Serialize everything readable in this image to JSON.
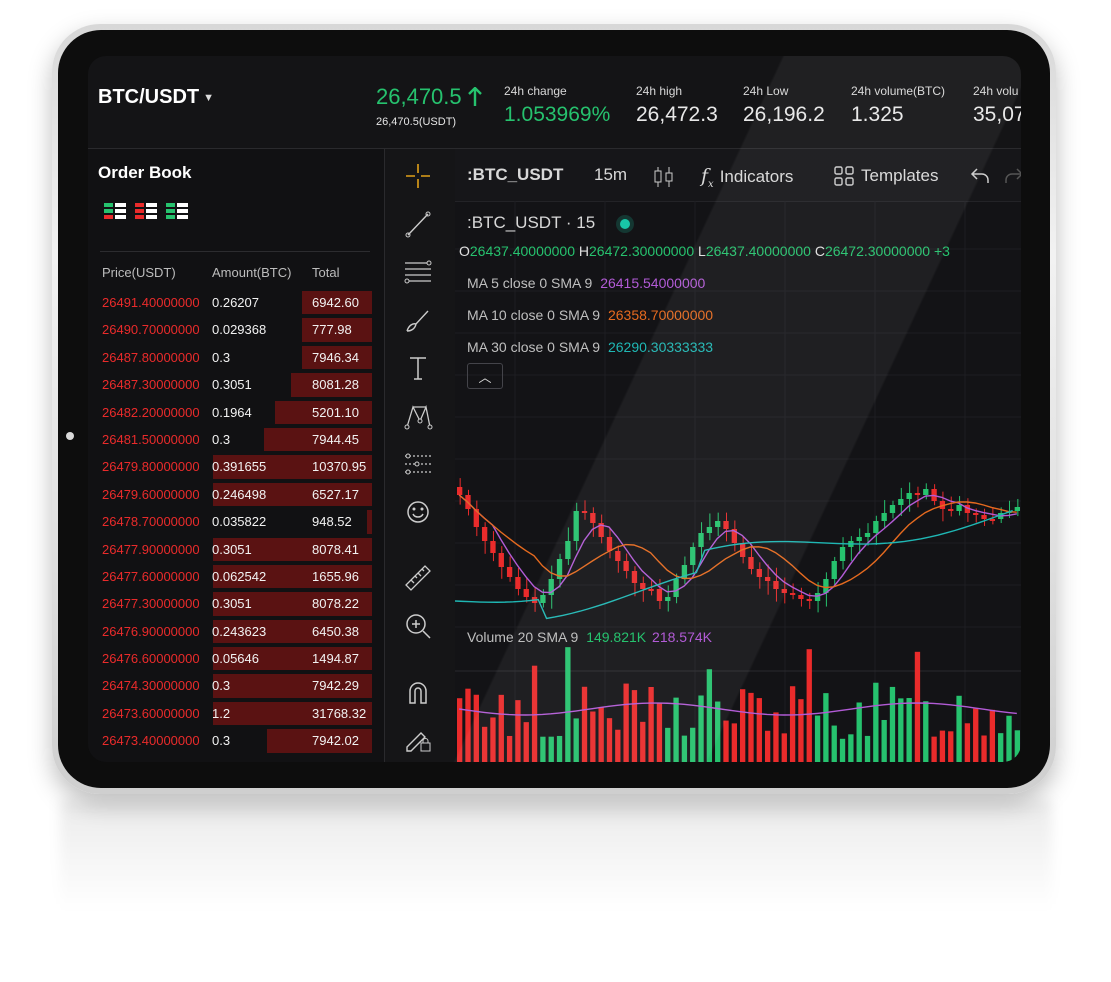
{
  "header": {
    "pair": "BTC/USDT",
    "price": "26,470.5",
    "price_sub": "26,470.5(USDT)",
    "stats": [
      {
        "label": "24h change",
        "value": "1.053969%",
        "color": "green"
      },
      {
        "label": "24h high",
        "value": "26,472.3",
        "color": "white"
      },
      {
        "label": "24h Low",
        "value": "26,196.2",
        "color": "white"
      },
      {
        "label": "24h volume(BTC)",
        "value": "1.325",
        "color": "white"
      },
      {
        "label": "24h volu",
        "value": "35,07",
        "color": "white"
      }
    ]
  },
  "order_book": {
    "title": "Order Book",
    "columns": {
      "price": "Price(USDT)",
      "amount": "Amount(BTC)",
      "total": "Total"
    },
    "rows": [
      {
        "price": "26491.40000000",
        "amount": "0.26207",
        "total": "6942.60",
        "depth": 0.26
      },
      {
        "price": "26490.70000000",
        "amount": "0.029368",
        "total": "777.98",
        "depth": 0.26
      },
      {
        "price": "26487.80000000",
        "amount": "0.3",
        "total": "7946.34",
        "depth": 0.26
      },
      {
        "price": "26487.30000000",
        "amount": "0.3051",
        "total": "8081.28",
        "depth": 0.3
      },
      {
        "price": "26482.20000000",
        "amount": "0.1964",
        "total": "5201.10",
        "depth": 0.36
      },
      {
        "price": "26481.50000000",
        "amount": "0.3",
        "total": "7944.45",
        "depth": 0.4
      },
      {
        "price": "26479.80000000",
        "amount": "0.391655",
        "total": "10370.95",
        "depth": 0.59
      },
      {
        "price": "26479.60000000",
        "amount": "0.246498",
        "total": "6527.17",
        "depth": 0.59
      },
      {
        "price": "26478.70000000",
        "amount": "0.035822",
        "total": "948.52",
        "depth": 0.02
      },
      {
        "price": "26477.90000000",
        "amount": "0.3051",
        "total": "8078.41",
        "depth": 0.59
      },
      {
        "price": "26477.60000000",
        "amount": "0.062542",
        "total": "1655.96",
        "depth": 0.59
      },
      {
        "price": "26477.30000000",
        "amount": "0.3051",
        "total": "8078.22",
        "depth": 0.59
      },
      {
        "price": "26476.90000000",
        "amount": "0.243623",
        "total": "6450.38",
        "depth": 0.59
      },
      {
        "price": "26476.60000000",
        "amount": "0.05646",
        "total": "1494.87",
        "depth": 0.59
      },
      {
        "price": "26474.30000000",
        "amount": "0.3",
        "total": "7942.29",
        "depth": 0.59
      },
      {
        "price": "26473.60000000",
        "amount": "1.2",
        "total": "31768.32",
        "depth": 0.59
      },
      {
        "price": "26473.40000000",
        "amount": "0.3",
        "total": "7942.02",
        "depth": 0.39
      }
    ]
  },
  "tools": [
    "crosshair-icon",
    "trend-line-icon",
    "fib-icon",
    "brush-icon",
    "text-icon",
    "pattern-icon",
    "prediction-icon",
    "emoji-icon",
    "ruler-icon",
    "zoom-in-icon",
    "magnet-icon",
    "lock-drawings-icon"
  ],
  "chart_toolbar": {
    "symbol": ":BTC_USDT",
    "interval": "15m",
    "indicators": "Indicators",
    "templates": "Templates"
  },
  "chart_info": {
    "symbol": ":BTC_USDT",
    "sep": "·",
    "interval": "15",
    "ohlc": {
      "o_label": "O",
      "o": "26437.40000000",
      "h_label": "H",
      "h": "26472.30000000",
      "l_label": "L",
      "l": "26437.40000000",
      "c_label": "C",
      "c": "26472.30000000",
      "extra": "+3"
    },
    "ma": [
      {
        "label": "MA 5 close 0 SMA 9",
        "value": "26415.54000000",
        "color": "#b25bd6"
      },
      {
        "label": "MA 10 close 0 SMA 9",
        "value": "26358.70000000",
        "color": "#e56a1f"
      },
      {
        "label": "MA 30 close 0 SMA 9",
        "value": "26290.30333333",
        "color": "#1fb7b4"
      }
    ],
    "volume": {
      "label": "Volume 20 SMA 9",
      "v1": "149.821K",
      "v2": "218.574K"
    }
  },
  "colors": {
    "up": "#26c26e",
    "down": "#ea2b2b",
    "accent": "#18c7a7",
    "ask_depth": "#5a1212"
  }
}
